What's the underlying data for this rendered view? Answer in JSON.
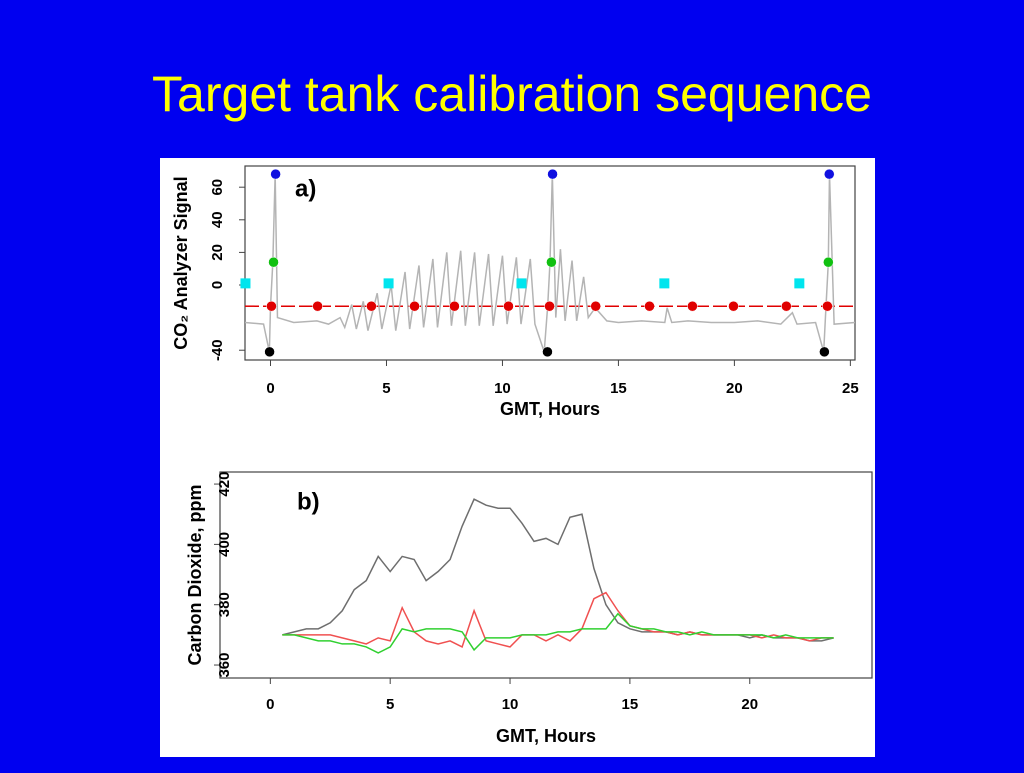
{
  "title": "Target tank calibration sequence",
  "chart_data": [
    {
      "type": "line",
      "annotation": "a)",
      "xlabel": "GMT, Hours",
      "ylabel": "CO₂ Analyzer Signal",
      "xlim": [
        -1.1,
        25.2
      ],
      "xticks": [
        0,
        5,
        10,
        15,
        20,
        25
      ],
      "ylim": [
        -46,
        73
      ],
      "yticks": [
        -40,
        0,
        20,
        40,
        60
      ],
      "reference_line": {
        "value": -13,
        "color": "#e00000"
      },
      "series": [
        {
          "style": "line",
          "color": "#b4b4b4",
          "x": [
            -1.1,
            -0.3,
            -0.05,
            0,
            0.1,
            0.2,
            0.3,
            1,
            2,
            2.5,
            3,
            3.2,
            3.5,
            3.7,
            4,
            4.2,
            4.6,
            4.8,
            5.2,
            5.4,
            5.8,
            6,
            6.4,
            6.6,
            7,
            7.2,
            7.6,
            7.8,
            8.2,
            8.4,
            8.8,
            9,
            9.4,
            9.6,
            10,
            10.2,
            10.6,
            10.8,
            11.2,
            11.4,
            11.8,
            11.95,
            12.05,
            12.15,
            12.3,
            12.5,
            12.7,
            13,
            13.2,
            13.5,
            13.7,
            14,
            14.5,
            15,
            16,
            17,
            17.1,
            17.3,
            18,
            19,
            20,
            21,
            22,
            22.5,
            22.7,
            23.5,
            23.85,
            23.95,
            24.05,
            24.1,
            24.3,
            25.2
          ],
          "values": [
            -23,
            -24,
            -41,
            -13,
            14,
            68,
            -20,
            -23,
            -22,
            -24,
            -20,
            -26,
            -12,
            -27,
            -10,
            -28,
            -5,
            -27,
            0,
            -28,
            8,
            -27,
            12,
            -26,
            16,
            -26,
            20,
            -25,
            21,
            -25,
            20,
            -25,
            19,
            -25,
            18,
            -24,
            17,
            -24,
            16,
            -24,
            -41,
            -13,
            14,
            68,
            -20,
            22,
            -22,
            15,
            -22,
            5,
            -20,
            -14,
            -22,
            -23,
            -22,
            -23,
            -14,
            -23,
            -22,
            -23,
            -23,
            -22,
            -24,
            -17,
            -24,
            -23,
            -41,
            -13,
            14,
            68,
            -24,
            -23
          ]
        },
        {
          "style": "points",
          "color": "#e00000",
          "x": [
            0.04,
            2.03,
            4.35,
            6.21,
            7.93,
            10.26,
            12.03,
            14.02,
            16.34,
            18.19,
            19.96,
            22.24,
            24.01
          ],
          "values": [
            -13,
            -13,
            -13,
            -13,
            -13,
            -13,
            -13,
            -13,
            -13,
            -13,
            -13,
            -13,
            -13
          ]
        },
        {
          "style": "squares",
          "color": "#00e5ee",
          "x": [
            -1.08,
            5.09,
            10.82,
            16.98,
            22.8
          ],
          "values": [
            1,
            1,
            1,
            1,
            1
          ]
        },
        {
          "style": "points",
          "color": "#1010e0",
          "x": [
            0.22,
            12.16,
            24.09
          ],
          "values": [
            68,
            68,
            68
          ]
        },
        {
          "style": "points",
          "color": "#10c010",
          "x": [
            0.13,
            12.11,
            24.05
          ],
          "values": [
            14,
            14,
            14
          ]
        },
        {
          "style": "points",
          "color": "#000000",
          "x": [
            -0.04,
            11.94,
            23.88
          ],
          "values": [
            -41,
            -41,
            -41
          ]
        }
      ]
    },
    {
      "type": "line",
      "annotation": "b)",
      "xlabel": "GMT, Hours",
      "ylabel": "Carbon Dioxide, ppm",
      "xlim": [
        -2.1,
        25.1
      ],
      "xticks": [
        0,
        5,
        10,
        15,
        20
      ],
      "ylim": [
        355.7,
        424
      ],
      "yticks": [
        360,
        380,
        400,
        420
      ],
      "x": [
        0.5,
        1,
        1.5,
        2,
        2.5,
        3,
        3.5,
        4,
        4.5,
        5,
        5.5,
        6,
        6.5,
        7,
        7.5,
        8,
        8.5,
        9,
        9.5,
        10,
        10.5,
        11,
        11.5,
        12,
        12.5,
        13,
        13.5,
        14,
        14.5,
        15,
        15.5,
        16,
        16.5,
        17,
        17.5,
        18,
        18.5,
        19,
        19.5,
        20,
        20.5,
        21,
        21.5,
        22,
        22.5,
        23,
        23.5
      ],
      "series": [
        {
          "style": "line",
          "color": "#6e6e6e",
          "values": [
            370,
            371,
            372,
            372,
            374,
            378,
            385,
            388,
            396,
            391,
            396,
            395,
            388,
            391,
            395,
            406,
            415,
            413,
            412,
            412,
            407,
            401,
            402,
            400,
            409,
            410,
            392,
            380,
            374,
            372,
            371,
            371,
            371,
            370,
            371,
            370,
            370,
            370,
            370,
            369,
            370,
            369,
            369,
            369,
            368,
            368,
            369
          ]
        },
        {
          "style": "line",
          "color": "#f05050",
          "values": [
            370,
            370,
            370,
            370,
            370,
            369,
            368,
            367,
            369,
            368,
            379,
            371,
            368,
            367,
            368,
            366,
            378,
            368,
            367,
            366,
            370,
            370,
            368,
            370,
            368,
            372,
            382,
            384,
            378,
            373,
            372,
            371,
            371,
            370,
            371,
            370,
            370,
            370,
            370,
            370,
            369,
            370,
            369,
            369,
            368,
            369,
            369
          ]
        },
        {
          "style": "line",
          "color": "#30d030",
          "values": [
            370,
            370,
            369,
            368,
            368,
            367,
            367,
            366,
            364,
            366,
            372,
            371,
            372,
            372,
            372,
            371,
            365,
            369,
            369,
            369,
            370,
            370,
            370,
            371,
            371,
            372,
            372,
            372,
            377,
            373,
            372,
            372,
            371,
            371,
            370,
            371,
            370,
            370,
            370,
            370,
            370,
            369,
            370,
            369,
            369,
            369,
            369
          ]
        }
      ]
    }
  ]
}
